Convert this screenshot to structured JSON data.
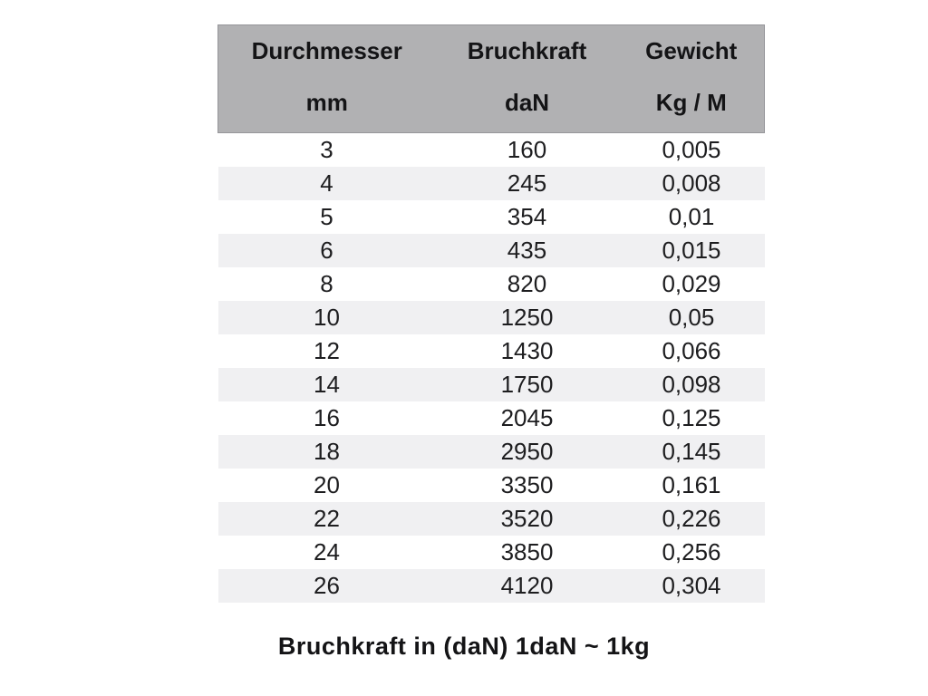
{
  "colors": {
    "header_bg": "#b1b1b3",
    "header_border": "#96969a",
    "stripe_bg": "#f0f0f2",
    "text": "#1d1d1f",
    "page_bg": "#ffffff"
  },
  "table": {
    "columns": [
      {
        "label": "Durchmesser",
        "unit": "mm"
      },
      {
        "label": "Bruchkraft",
        "unit": "daN"
      },
      {
        "label": "Gewicht",
        "unit": "Kg / M"
      }
    ],
    "rows": [
      [
        "3",
        "160",
        "0,005"
      ],
      [
        "4",
        "245",
        "0,008"
      ],
      [
        "5",
        "354",
        "0,01"
      ],
      [
        "6",
        "435",
        "0,015"
      ],
      [
        "8",
        "820",
        "0,029"
      ],
      [
        "10",
        "1250",
        "0,05"
      ],
      [
        "12",
        "1430",
        "0,066"
      ],
      [
        "14",
        "1750",
        "0,098"
      ],
      [
        "16",
        "2045",
        "0,125"
      ],
      [
        "18",
        "2950",
        "0,145"
      ],
      [
        "20",
        "3350",
        "0,161"
      ],
      [
        "22",
        "3520",
        "0,226"
      ],
      [
        "24",
        "3850",
        "0,256"
      ],
      [
        "26",
        "4120",
        "0,304"
      ]
    ]
  },
  "footer": {
    "note": "Bruchkraft in (daN) 1daN ~ 1kg"
  },
  "chart_data": {
    "type": "table",
    "title": "",
    "columns": [
      "Durchmesser (mm)",
      "Bruchkraft (daN)",
      "Gewicht (Kg / M)"
    ],
    "rows": [
      [
        3,
        160,
        0.005
      ],
      [
        4,
        245,
        0.008
      ],
      [
        5,
        354,
        0.01
      ],
      [
        6,
        435,
        0.015
      ],
      [
        8,
        820,
        0.029
      ],
      [
        10,
        1250,
        0.05
      ],
      [
        12,
        1430,
        0.066
      ],
      [
        14,
        1750,
        0.098
      ],
      [
        16,
        2045,
        0.125
      ],
      [
        18,
        2950,
        0.145
      ],
      [
        20,
        3350,
        0.161
      ],
      [
        22,
        3520,
        0.226
      ],
      [
        24,
        3850,
        0.256
      ],
      [
        26,
        4120,
        0.304
      ]
    ],
    "annotations": [
      "Bruchkraft in (daN) 1daN ~ 1kg"
    ],
    "layout": {
      "header_style": "gray-band",
      "zebra_stripes": true,
      "grid": false
    }
  }
}
